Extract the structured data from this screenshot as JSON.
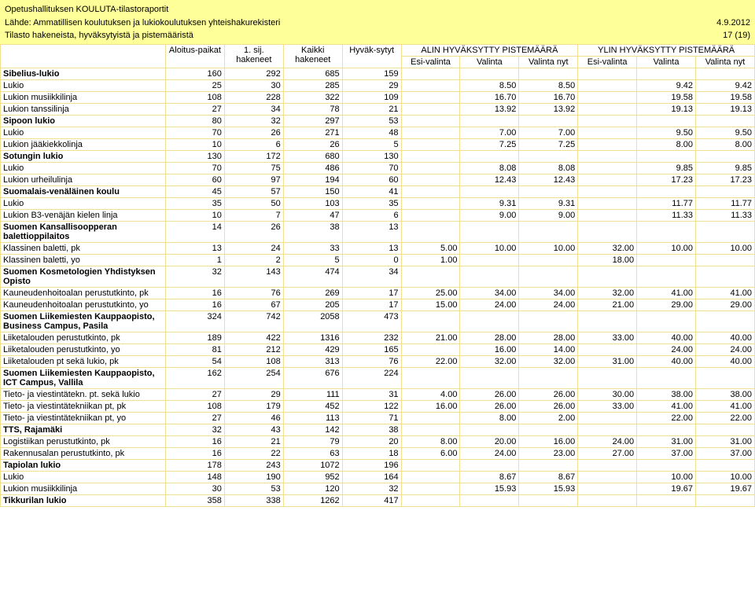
{
  "header": {
    "title": "Opetushallituksen KOULUTA-tilastoraportit",
    "source": "Lähde: Ammatillisen koulutuksen ja lukiokoulutuksen yhteishakurekisteri",
    "date": "4.9.2012",
    "subtitle": "Tilasto hakeneista, hyväksytyistä ja pistemääristä",
    "page": "17 (19)"
  },
  "columns": {
    "alin_group": "ALIN HYVÄKSYTTY PISTEMÄÄRÄ",
    "ylin_group": "YLIN HYVÄKSYTTY PISTEMÄÄRÄ",
    "c0": "",
    "c1": "Aloitus-paikat",
    "c2": "1. sij. hakeneet",
    "c3": "Kaikki hakeneet",
    "c4": "Hyväk-sytyt",
    "c5": "Esi-valinta",
    "c6": "Valinta",
    "c7": "Valinta nyt",
    "c8": "Esi-valinta",
    "c9": "Valinta",
    "c10": "Valinta nyt"
  },
  "rows": [
    {
      "section": true,
      "name": "Sibelius-lukio",
      "v": [
        "160",
        "292",
        "685",
        "159",
        "",
        "",
        "",
        "",
        "",
        ""
      ]
    },
    {
      "name": "Lukio",
      "v": [
        "25",
        "30",
        "285",
        "29",
        "",
        "8.50",
        "8.50",
        "",
        "9.42",
        "9.42"
      ]
    },
    {
      "name": "Lukion musiikkilinja",
      "v": [
        "108",
        "228",
        "322",
        "109",
        "",
        "16.70",
        "16.70",
        "",
        "19.58",
        "19.58"
      ]
    },
    {
      "name": "Lukion tanssilinja",
      "v": [
        "27",
        "34",
        "78",
        "21",
        "",
        "13.92",
        "13.92",
        "",
        "19.13",
        "19.13"
      ]
    },
    {
      "section": true,
      "name": "Sipoon lukio",
      "v": [
        "80",
        "32",
        "297",
        "53",
        "",
        "",
        "",
        "",
        "",
        ""
      ]
    },
    {
      "name": "Lukio",
      "v": [
        "70",
        "26",
        "271",
        "48",
        "",
        "7.00",
        "7.00",
        "",
        "9.50",
        "9.50"
      ]
    },
    {
      "name": "Lukion jääkiekkolinja",
      "v": [
        "10",
        "6",
        "26",
        "5",
        "",
        "7.25",
        "7.25",
        "",
        "8.00",
        "8.00"
      ]
    },
    {
      "section": true,
      "name": "Sotungin lukio",
      "v": [
        "130",
        "172",
        "680",
        "130",
        "",
        "",
        "",
        "",
        "",
        ""
      ]
    },
    {
      "name": "Lukio",
      "v": [
        "70",
        "75",
        "486",
        "70",
        "",
        "8.08",
        "8.08",
        "",
        "9.85",
        "9.85"
      ]
    },
    {
      "name": "Lukion urheilulinja",
      "v": [
        "60",
        "97",
        "194",
        "60",
        "",
        "12.43",
        "12.43",
        "",
        "17.23",
        "17.23"
      ]
    },
    {
      "section": true,
      "name": "Suomalais-venäläinen koulu",
      "v": [
        "45",
        "57",
        "150",
        "41",
        "",
        "",
        "",
        "",
        "",
        ""
      ]
    },
    {
      "name": "Lukio",
      "v": [
        "35",
        "50",
        "103",
        "35",
        "",
        "9.31",
        "9.31",
        "",
        "11.77",
        "11.77"
      ]
    },
    {
      "name": "Lukion B3-venäjän kielen linja",
      "v": [
        "10",
        "7",
        "47",
        "6",
        "",
        "9.00",
        "9.00",
        "",
        "11.33",
        "11.33"
      ]
    },
    {
      "section": true,
      "name": "Suomen Kansallisoopperan balettioppilaitos",
      "v": [
        "14",
        "26",
        "38",
        "13",
        "",
        "",
        "",
        "",
        "",
        ""
      ]
    },
    {
      "name": "Klassinen baletti, pk",
      "v": [
        "13",
        "24",
        "33",
        "13",
        "5.00",
        "10.00",
        "10.00",
        "32.00",
        "10.00",
        "10.00"
      ]
    },
    {
      "name": "Klassinen baletti, yo",
      "v": [
        "1",
        "2",
        "5",
        "0",
        "1.00",
        "",
        "",
        "18.00",
        "",
        ""
      ]
    },
    {
      "section": true,
      "name": "Suomen Kosmetologien Yhdistyksen Opisto",
      "v": [
        "32",
        "143",
        "474",
        "34",
        "",
        "",
        "",
        "",
        "",
        ""
      ]
    },
    {
      "name": "Kauneudenhoitoalan perustutkinto, pk",
      "v": [
        "16",
        "76",
        "269",
        "17",
        "25.00",
        "34.00",
        "34.00",
        "32.00",
        "41.00",
        "41.00"
      ]
    },
    {
      "name": "Kauneudenhoitoalan perustutkinto, yo",
      "v": [
        "16",
        "67",
        "205",
        "17",
        "15.00",
        "24.00",
        "24.00",
        "21.00",
        "29.00",
        "29.00"
      ]
    },
    {
      "section": true,
      "name": "Suomen Liikemiesten Kauppaopisto, Business Campus, Pasila",
      "v": [
        "324",
        "742",
        "2058",
        "473",
        "",
        "",
        "",
        "",
        "",
        ""
      ]
    },
    {
      "name": "Liiketalouden perustutkinto, pk",
      "v": [
        "189",
        "422",
        "1316",
        "232",
        "21.00",
        "28.00",
        "28.00",
        "33.00",
        "40.00",
        "40.00"
      ]
    },
    {
      "name": "Liiketalouden perustutkinto, yo",
      "v": [
        "81",
        "212",
        "429",
        "165",
        "",
        "16.00",
        "14.00",
        "",
        "24.00",
        "24.00"
      ]
    },
    {
      "name": "Liiketalouden pt sekä lukio, pk",
      "v": [
        "54",
        "108",
        "313",
        "76",
        "22.00",
        "32.00",
        "32.00",
        "31.00",
        "40.00",
        "40.00"
      ]
    },
    {
      "section": true,
      "name": "Suomen Liikemiesten Kauppaopisto, ICT Campus, Vallila",
      "v": [
        "162",
        "254",
        "676",
        "224",
        "",
        "",
        "",
        "",
        "",
        ""
      ]
    },
    {
      "name": "Tieto- ja viestintätekn. pt. sekä lukio",
      "v": [
        "27",
        "29",
        "111",
        "31",
        "4.00",
        "26.00",
        "26.00",
        "30.00",
        "38.00",
        "38.00"
      ]
    },
    {
      "name": "Tieto- ja viestintätekniikan pt, pk",
      "v": [
        "108",
        "179",
        "452",
        "122",
        "16.00",
        "26.00",
        "26.00",
        "33.00",
        "41.00",
        "41.00"
      ]
    },
    {
      "name": "Tieto- ja viestintätekniikan pt, yo",
      "v": [
        "27",
        "46",
        "113",
        "71",
        "",
        "8.00",
        "2.00",
        "",
        "22.00",
        "22.00"
      ]
    },
    {
      "section": true,
      "name": "TTS, Rajamäki",
      "v": [
        "32",
        "43",
        "142",
        "38",
        "",
        "",
        "",
        "",
        "",
        ""
      ]
    },
    {
      "name": "Logistiikan perustutkinto, pk",
      "v": [
        "16",
        "21",
        "79",
        "20",
        "8.00",
        "20.00",
        "16.00",
        "24.00",
        "31.00",
        "31.00"
      ]
    },
    {
      "name": "Rakennusalan perustutkinto, pk",
      "v": [
        "16",
        "22",
        "63",
        "18",
        "6.00",
        "24.00",
        "23.00",
        "27.00",
        "37.00",
        "37.00"
      ]
    },
    {
      "section": true,
      "name": "Tapiolan lukio",
      "v": [
        "178",
        "243",
        "1072",
        "196",
        "",
        "",
        "",
        "",
        "",
        ""
      ]
    },
    {
      "name": "Lukio",
      "v": [
        "148",
        "190",
        "952",
        "164",
        "",
        "8.67",
        "8.67",
        "",
        "10.00",
        "10.00"
      ]
    },
    {
      "name": "Lukion musiikkilinja",
      "v": [
        "30",
        "53",
        "120",
        "32",
        "",
        "15.93",
        "15.93",
        "",
        "19.67",
        "19.67"
      ]
    },
    {
      "section": true,
      "name": "Tikkurilan lukio",
      "v": [
        "358",
        "338",
        "1262",
        "417",
        "",
        "",
        "",
        "",
        "",
        ""
      ]
    }
  ]
}
